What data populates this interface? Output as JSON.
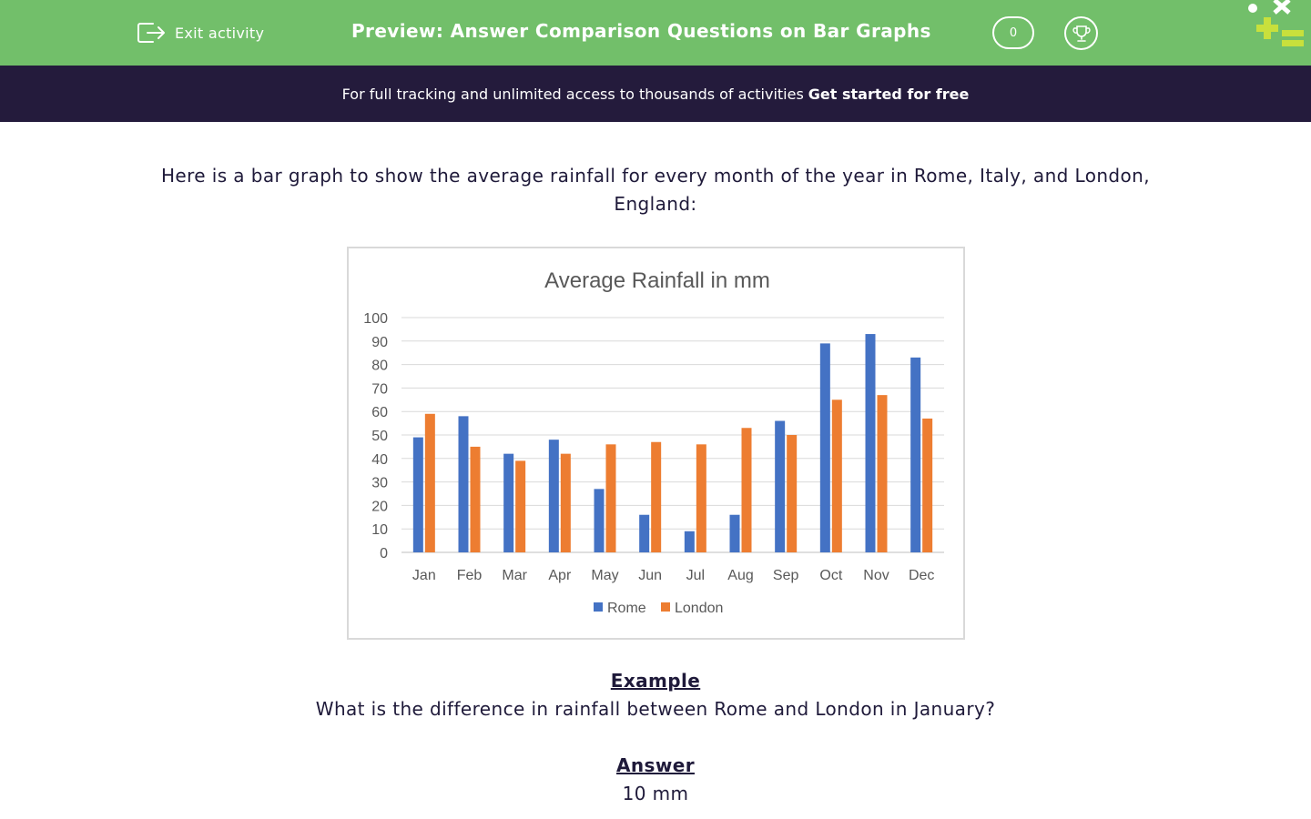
{
  "header": {
    "exit_label": "Exit activity",
    "title": "Preview: Answer Comparison Questions on Bar Graphs",
    "score": "0",
    "bg_color": "#72bf6a"
  },
  "banner": {
    "text": "For full tracking and unlimited access to thousands of activities",
    "cta": "Get started for free",
    "bg_color": "#241b3c"
  },
  "content": {
    "intro": "Here is a bar graph to show the average rainfall for every month of the year in Rome, Italy, and London, England:",
    "example_heading": "Example",
    "question": "What is the difference in rainfall between Rome and London in January?",
    "answer_heading": "Answer",
    "answer": "10 mm"
  },
  "chart_data": {
    "type": "bar",
    "title": "Average Rainfall in mm",
    "categories": [
      "Jan",
      "Feb",
      "Mar",
      "Apr",
      "May",
      "Jun",
      "Jul",
      "Aug",
      "Sep",
      "Oct",
      "Nov",
      "Dec"
    ],
    "series": [
      {
        "name": "Rome",
        "color": "#4472c4",
        "values": [
          49,
          58,
          42,
          48,
          27,
          16,
          9,
          16,
          56,
          89,
          93,
          83
        ]
      },
      {
        "name": "London",
        "color": "#ed7d31",
        "values": [
          59,
          45,
          39,
          42,
          46,
          47,
          46,
          53,
          50,
          65,
          67,
          57
        ]
      }
    ],
    "ylim": [
      0,
      100
    ],
    "yticks": [
      0,
      10,
      20,
      30,
      40,
      50,
      60,
      70,
      80,
      90,
      100
    ],
    "grid": true,
    "legend": "bottom"
  }
}
